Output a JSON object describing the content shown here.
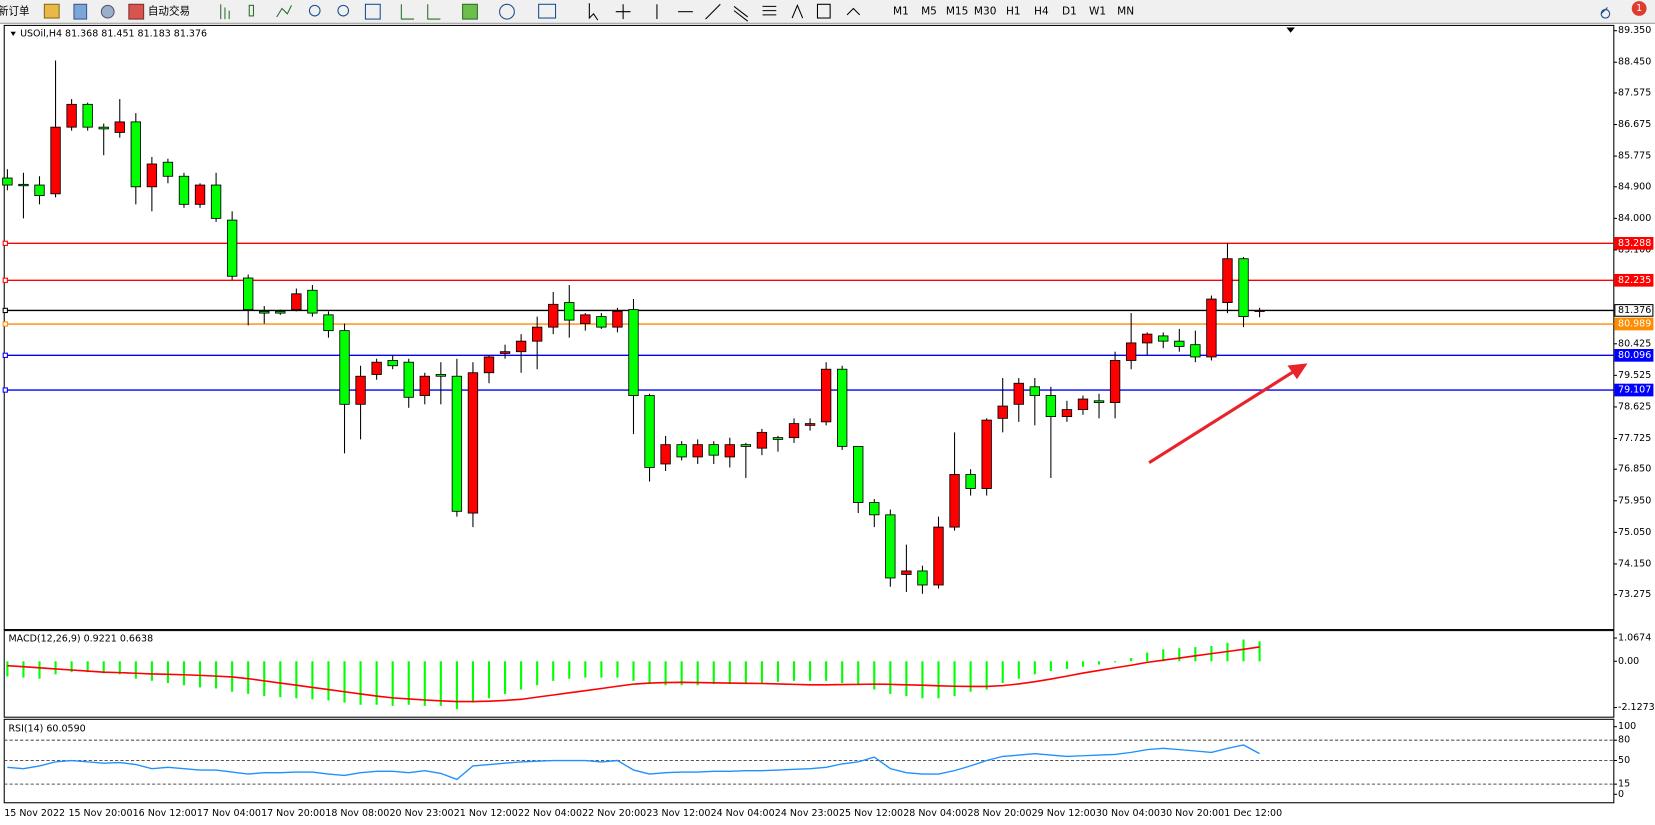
{
  "toolbar": {
    "new_order": "新订单",
    "auto_trading": "自动交易",
    "timeframes": [
      "M1",
      "M5",
      "M15",
      "M30",
      "H1",
      "H4",
      "D1",
      "W1",
      "MN"
    ],
    "notification": "1"
  },
  "chart_data": [
    {
      "type": "candlestick",
      "title": "USOil,H4 81.368 81.451 81.183 81.376",
      "categories": [
        "15 Nov 2022",
        null,
        null,
        null,
        "15 Nov 20:00",
        null,
        null,
        null,
        "16 Nov 12:00",
        null,
        null,
        null,
        "17 Nov 04:00",
        null,
        null,
        null,
        "17 Nov 20:00",
        null,
        null,
        null,
        "18 Nov 08:00",
        null,
        null,
        null,
        "20 Nov 23:00",
        null,
        null,
        null,
        "21 Nov 12:00",
        null,
        null,
        null,
        "22 Nov 04:00",
        null,
        null,
        null,
        "22 Nov 20:00",
        null,
        null,
        null,
        "23 Nov 12:00",
        null,
        null,
        null,
        "24 Nov 04:00",
        null,
        null,
        null,
        "24 Nov 23:00",
        null,
        null,
        null,
        "25 Nov 12:00",
        null,
        null,
        null,
        "28 Nov 04:00",
        null,
        null,
        null,
        "28 Nov 20:00",
        null,
        null,
        null,
        "29 Nov 12:00",
        null,
        null,
        null,
        "30 Nov 04:00",
        null,
        null,
        null,
        "30 Nov 20:00",
        null,
        null,
        null,
        "1 Dec 12:00",
        null,
        null
      ],
      "open": [
        85.15,
        84.97,
        84.95,
        84.7,
        86.6,
        87.25,
        86.6,
        86.45,
        86.75,
        84.9,
        85.6,
        85.2,
        84.4,
        84.95,
        83.95,
        82.3,
        81.35,
        81.35,
        81.4,
        81.95,
        81.25,
        80.8,
        78.7,
        79.55,
        79.95,
        79.9,
        78.95,
        79.55,
        79.5,
        75.6,
        79.6,
        80.15,
        80.2,
        80.5,
        80.9,
        81.6,
        81.0,
        81.2,
        80.9,
        81.4,
        78.95,
        77.0,
        77.55,
        77.2,
        77.55,
        77.2,
        77.55,
        77.45,
        77.75,
        77.75,
        78.1,
        78.2,
        79.7,
        77.5,
        75.9,
        75.55,
        73.85,
        73.95,
        73.55,
        75.2,
        76.7,
        76.3,
        78.3,
        78.7,
        79.2,
        78.95,
        78.35,
        78.55,
        78.8,
        78.75,
        79.95,
        80.45,
        80.65,
        80.5,
        80.4,
        80.05,
        81.6,
        82.85,
        81.368
      ],
      "high": [
        85.4,
        85.3,
        85.2,
        88.5,
        87.4,
        87.3,
        86.7,
        87.4,
        87.0,
        85.75,
        85.7,
        85.3,
        85.0,
        85.3,
        84.2,
        82.4,
        81.5,
        81.4,
        82.0,
        82.1,
        81.35,
        81.0,
        79.8,
        80.0,
        80.1,
        80.0,
        79.6,
        79.9,
        80.0,
        79.9,
        80.1,
        80.4,
        80.7,
        81.2,
        81.9,
        82.1,
        81.3,
        81.3,
        81.45,
        81.7,
        79.0,
        77.8,
        77.65,
        77.7,
        77.65,
        77.75,
        77.6,
        78.0,
        77.8,
        78.3,
        78.3,
        79.9,
        79.8,
        77.5,
        76.0,
        75.7,
        74.7,
        74.1,
        75.5,
        77.9,
        76.85,
        78.3,
        79.45,
        79.45,
        79.45,
        79.2,
        78.8,
        78.95,
        79.0,
        80.2,
        81.3,
        80.75,
        80.75,
        80.85,
        80.8,
        81.8,
        83.3,
        82.9,
        81.451
      ],
      "low": [
        84.8,
        84.0,
        84.4,
        84.6,
        86.5,
        86.5,
        85.8,
        86.3,
        84.4,
        84.2,
        85.0,
        84.3,
        84.3,
        83.9,
        82.25,
        80.95,
        81.0,
        81.25,
        81.35,
        81.2,
        80.6,
        77.3,
        77.7,
        79.4,
        79.7,
        78.6,
        78.7,
        78.7,
        75.5,
        75.2,
        79.3,
        80.0,
        79.6,
        79.7,
        80.7,
        80.6,
        80.8,
        80.85,
        80.75,
        77.85,
        76.5,
        76.8,
        77.1,
        77.0,
        77.0,
        76.9,
        76.6,
        77.25,
        77.35,
        77.6,
        77.95,
        78.1,
        77.4,
        75.6,
        75.2,
        73.5,
        73.35,
        73.3,
        73.45,
        75.1,
        76.1,
        76.1,
        77.9,
        78.2,
        78.1,
        76.6,
        78.2,
        78.4,
        78.3,
        78.3,
        79.7,
        80.1,
        80.3,
        80.2,
        79.9,
        79.95,
        81.3,
        80.9,
        81.183
      ],
      "close": [
        84.95,
        84.93,
        84.65,
        86.6,
        87.25,
        86.6,
        86.55,
        86.75,
        84.9,
        85.55,
        85.2,
        84.4,
        84.95,
        84.0,
        82.35,
        81.4,
        81.3,
        81.3,
        81.85,
        81.3,
        80.8,
        78.7,
        79.5,
        79.9,
        79.8,
        78.9,
        79.5,
        79.5,
        75.65,
        79.6,
        80.05,
        80.2,
        80.5,
        80.9,
        81.55,
        81.1,
        81.25,
        80.9,
        81.35,
        78.95,
        76.9,
        77.55,
        77.2,
        77.55,
        77.25,
        77.55,
        77.5,
        77.9,
        77.7,
        78.15,
        78.15,
        79.7,
        77.5,
        75.9,
        75.55,
        73.75,
        73.95,
        73.55,
        75.2,
        76.7,
        76.3,
        78.25,
        78.65,
        79.3,
        78.95,
        78.35,
        78.55,
        78.85,
        78.75,
        79.95,
        80.45,
        80.7,
        80.5,
        80.35,
        80.05,
        81.7,
        82.85,
        81.2,
        81.376
      ],
      "up_color": "#ff0000",
      "down_color": "#00ff00",
      "ylim": [
        72.28,
        89.5
      ],
      "yticks": [
        {
          "value": 89.35,
          "label": "89.350"
        },
        {
          "value": 88.45,
          "label": "88.450"
        },
        87.575,
        86.675,
        85.775,
        {
          "value": 84.9,
          "label": "84.900"
        },
        {
          "value": 84,
          "label": "84.000"
        },
        {
          "value": 83.1,
          "label": "83.100"
        },
        80.425,
        79.525,
        78.625,
        77.725,
        {
          "value": 76.85,
          "label": "76.850"
        },
        {
          "value": 75.95,
          "label": "75.950"
        },
        {
          "value": 75.05,
          "label": "75.050"
        },
        {
          "value": 74.15,
          "label": "74.150"
        },
        73.275
      ],
      "hlines": [
        {
          "value": 83.288,
          "color": "#ff0000"
        },
        {
          "value": 82.235,
          "color": "#ff0000"
        },
        {
          "value": 81.376,
          "color": "#000000"
        },
        {
          "value": 80.989,
          "color": "#ff8c00"
        },
        {
          "value": 80.096,
          "color": "#0000ff"
        },
        {
          "value": 79.107,
          "color": "#0000ff"
        }
      ]
    },
    {
      "type": "macd",
      "title": "MACD(12,26,9) 0.9221 0.6638",
      "ylim": [
        -2.57,
        1.41
      ],
      "yticks": [
        1.0674,
        {
          "value": 0,
          "label": "0.00"
        },
        -2.1273
      ],
      "series": [
        {
          "type": "bar",
          "color": "#00ff00",
          "values": [
            -0.7,
            -0.75,
            -0.8,
            -0.6,
            -0.5,
            -0.5,
            -0.55,
            -0.6,
            -0.8,
            -0.9,
            -1.0,
            -1.1,
            -1.2,
            -1.25,
            -1.4,
            -1.5,
            -1.6,
            -1.65,
            -1.7,
            -1.75,
            -1.8,
            -1.9,
            -2.0,
            -2.0,
            -2.05,
            -2.0,
            -2.05,
            -2.05,
            -2.2,
            -1.9,
            -1.7,
            -1.5,
            -1.3,
            -1.1,
            -0.9,
            -0.8,
            -0.75,
            -0.75,
            -0.75,
            -0.9,
            -1.05,
            -1.1,
            -1.1,
            -1.1,
            -1.05,
            -1.05,
            -1.05,
            -1.0,
            -0.95,
            -0.9,
            -0.9,
            -0.9,
            -1.0,
            -1.1,
            -1.3,
            -1.5,
            -1.6,
            -1.7,
            -1.7,
            -1.6,
            -1.4,
            -1.3,
            -1.0,
            -0.8,
            -0.6,
            -0.45,
            -0.35,
            -0.25,
            -0.15,
            -0.05,
            0.15,
            0.4,
            0.55,
            0.6,
            0.65,
            0.7,
            0.85,
            1.0,
            0.92
          ]
        },
        {
          "type": "line",
          "color": "#ff0000",
          "values": [
            -0.2,
            -0.25,
            -0.3,
            -0.35,
            -0.4,
            -0.45,
            -0.5,
            -0.52,
            -0.55,
            -0.58,
            -0.6,
            -0.62,
            -0.65,
            -0.68,
            -0.72,
            -0.8,
            -0.9,
            -1.0,
            -1.1,
            -1.2,
            -1.3,
            -1.4,
            -1.5,
            -1.6,
            -1.68,
            -1.73,
            -1.78,
            -1.82,
            -1.85,
            -1.85,
            -1.83,
            -1.8,
            -1.75,
            -1.65,
            -1.55,
            -1.45,
            -1.35,
            -1.25,
            -1.15,
            -1.05,
            -1.0,
            -0.98,
            -0.97,
            -0.98,
            -0.99,
            -1.0,
            -1.01,
            -1.02,
            -1.04,
            -1.06,
            -1.08,
            -1.08,
            -1.07,
            -1.06,
            -1.05,
            -1.06,
            -1.08,
            -1.1,
            -1.13,
            -1.15,
            -1.16,
            -1.16,
            -1.12,
            -1.04,
            -0.94,
            -0.82,
            -0.68,
            -0.54,
            -0.42,
            -0.3,
            -0.18,
            -0.05,
            0.05,
            0.15,
            0.25,
            0.35,
            0.45,
            0.55,
            0.66
          ]
        }
      ]
    },
    {
      "type": "line",
      "title": "RSI(14) 60.0590",
      "ylim": [
        -12.5,
        110.9
      ],
      "yticks": [
        100,
        80,
        50,
        15,
        0
      ],
      "levels": [
        80,
        50,
        15
      ],
      "series": [
        {
          "type": "line",
          "color": "#1e90ff",
          "values": [
            40,
            38,
            42,
            48,
            50,
            48,
            46,
            47,
            44,
            38,
            40,
            38,
            36,
            36,
            33,
            30,
            32,
            32,
            33,
            33,
            30,
            28,
            32,
            34,
            34,
            32,
            35,
            31,
            22,
            42,
            44,
            46,
            48,
            49,
            50,
            50,
            50,
            48,
            50,
            36,
            30,
            32,
            33,
            33,
            34,
            34,
            35,
            35,
            36,
            37,
            38,
            40,
            45,
            48,
            55,
            38,
            32,
            30,
            30,
            35,
            42,
            50,
            56,
            58,
            60,
            58,
            56,
            57,
            58,
            59,
            62,
            66,
            68,
            66,
            64,
            62,
            68,
            73,
            60.06
          ]
        }
      ]
    }
  ]
}
